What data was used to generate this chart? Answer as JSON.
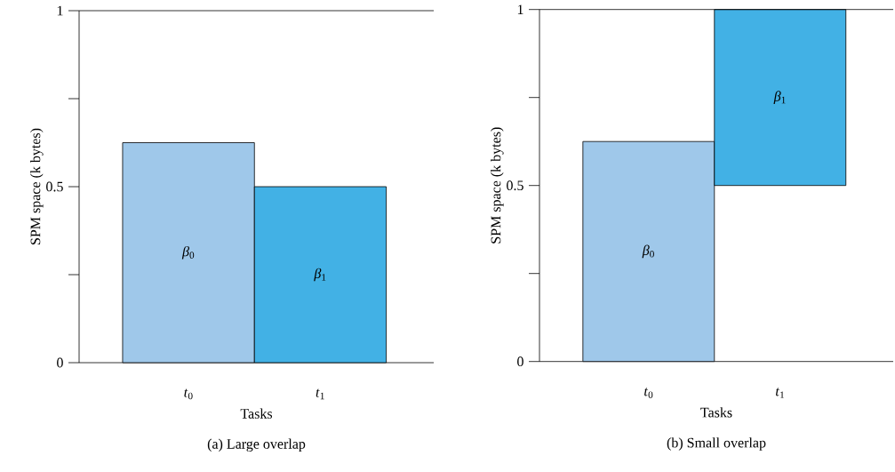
{
  "chart_data": [
    {
      "type": "bar",
      "title": "(a)  Large overlap",
      "xlabel": "Tasks",
      "ylabel": "SPM space (k bytes)",
      "categories": [
        "*t*$_{0}$",
        "*t*$_{1}$"
      ],
      "values": [
        0.625,
        0.5
      ],
      "colors": [
        "#9fc8ea",
        "#42b1e5"
      ],
      "ylim": [
        0,
        1
      ],
      "yticks": [
        0,
        0.5,
        1
      ],
      "annotations": [
        "*β*$_{0}$",
        "*β*$_{1}$"
      ]
    },
    {
      "type": "bar",
      "title": "(b)  Small overlap",
      "xlabel": "Tasks",
      "ylabel": "SPM space (k bytes)",
      "categories": [
        "*t*$_{0}$",
        "*t*$_{1}$"
      ],
      "values": [
        0.625,
        0.5
      ],
      "base": [
        0,
        0.5
      ],
      "colors": [
        "#9fc8ea",
        "#42b1e5"
      ],
      "ylim": [
        0,
        1
      ],
      "yticks": [
        0,
        0.5,
        1
      ],
      "annotations": [
        "*β*$_{0}$",
        "*β*$_{1}$"
      ]
    }
  ]
}
